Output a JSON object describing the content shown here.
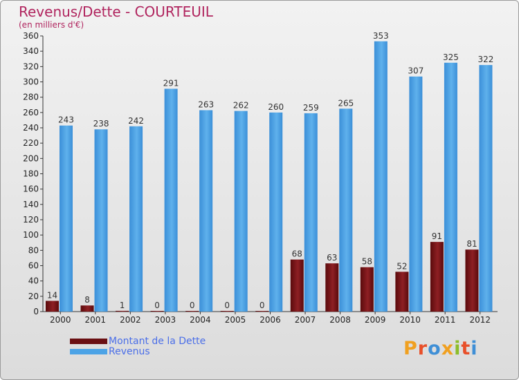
{
  "title": "Revenus/Dette - COURTEUIL",
  "subtitle": "(en milliers d'€)",
  "brand": "Proxiti",
  "colors": {
    "debt": "#7a1518",
    "revenue": "#4ca3e6",
    "title": "#b0245e",
    "legend_text": "#4a6ee8"
  },
  "chart_data": {
    "type": "bar",
    "categories": [
      "2000",
      "2001",
      "2002",
      "2003",
      "2004",
      "2005",
      "2006",
      "2007",
      "2008",
      "2009",
      "2010",
      "2011",
      "2012"
    ],
    "series": [
      {
        "name": "Montant de la Dette",
        "values": [
          14,
          8,
          1,
          0,
          0,
          0,
          0,
          68,
          63,
          58,
          52,
          91,
          81
        ]
      },
      {
        "name": "Revenus",
        "values": [
          243,
          238,
          242,
          291,
          263,
          262,
          260,
          259,
          265,
          353,
          307,
          325,
          322
        ]
      }
    ],
    "ylim": [
      0,
      360
    ],
    "ytick_step": 20,
    "grid": false,
    "legend_position": "bottom-left"
  }
}
